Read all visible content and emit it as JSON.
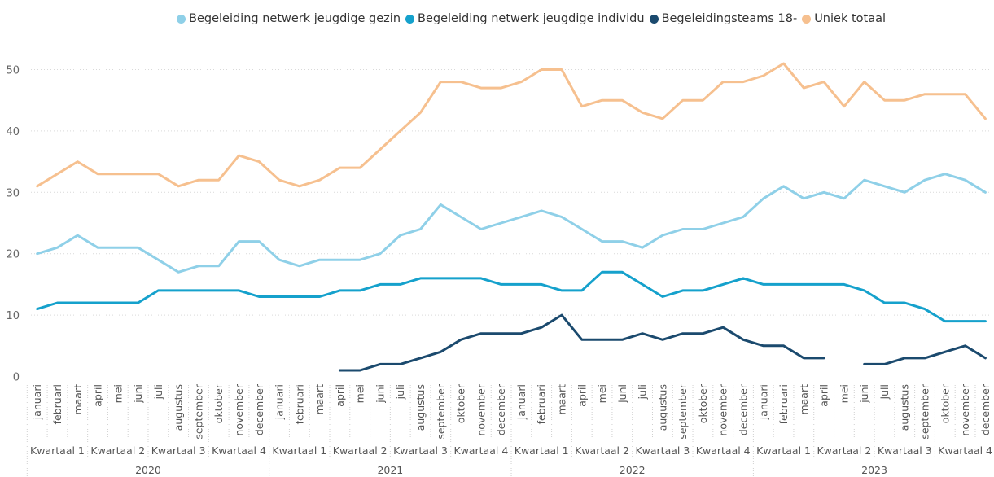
{
  "chart_data": {
    "type": "line",
    "ylim": [
      0,
      53
    ],
    "yticks": [
      0,
      10,
      20,
      30,
      40,
      50
    ],
    "grid": true,
    "legend_position": "top-center",
    "months": [
      "januari",
      "februari",
      "maart",
      "april",
      "mei",
      "juni",
      "juli",
      "augustus",
      "september",
      "oktober",
      "november",
      "december"
    ],
    "quarters": [
      "Kwartaal 1",
      "Kwartaal 2",
      "Kwartaal 3",
      "Kwartaal 4"
    ],
    "years": [
      "2020",
      "2021",
      "2022",
      "2023"
    ],
    "series": [
      {
        "name": "Begeleiding netwerk jeugdige gezin",
        "color": "#8fd0e8",
        "values": [
          20,
          21,
          23,
          21,
          21,
          21,
          19,
          17,
          18,
          18,
          22,
          22,
          19,
          18,
          19,
          19,
          19,
          20,
          23,
          24,
          28,
          26,
          24,
          25,
          26,
          27,
          26,
          24,
          22,
          22,
          21,
          23,
          24,
          24,
          25,
          26,
          29,
          31,
          29,
          30,
          29,
          32,
          31,
          30,
          32,
          33,
          32,
          30
        ]
      },
      {
        "name": "Begeleiding netwerk jeugdige individu",
        "color": "#15a1cc",
        "values": [
          11,
          12,
          12,
          12,
          12,
          12,
          14,
          14,
          14,
          14,
          14,
          13,
          13,
          13,
          13,
          14,
          14,
          15,
          15,
          16,
          16,
          16,
          16,
          15,
          15,
          15,
          14,
          14,
          17,
          17,
          15,
          13,
          14,
          14,
          15,
          16,
          15,
          15,
          15,
          15,
          15,
          14,
          12,
          12,
          11,
          9,
          9,
          9
        ]
      },
      {
        "name": "Begeleidingsteams 18-",
        "color": "#1b4a6e",
        "values": [
          null,
          null,
          null,
          null,
          null,
          null,
          null,
          null,
          null,
          null,
          null,
          null,
          null,
          null,
          null,
          1,
          1,
          2,
          2,
          3,
          4,
          6,
          7,
          7,
          7,
          8,
          10,
          6,
          6,
          6,
          7,
          6,
          7,
          7,
          8,
          6,
          5,
          5,
          3,
          3,
          null,
          2,
          2,
          3,
          3,
          4,
          5,
          3
        ]
      },
      {
        "name": "Uniek totaal",
        "color": "#f6c08f",
        "values": [
          31,
          33,
          35,
          33,
          33,
          33,
          33,
          31,
          32,
          32,
          36,
          35,
          32,
          31,
          32,
          34,
          34,
          37,
          40,
          43,
          48,
          48,
          47,
          47,
          48,
          50,
          50,
          44,
          45,
          45,
          43,
          42,
          45,
          45,
          48,
          48,
          49,
          51,
          47,
          48,
          44,
          48,
          45,
          45,
          46,
          46,
          46,
          42
        ]
      }
    ]
  }
}
